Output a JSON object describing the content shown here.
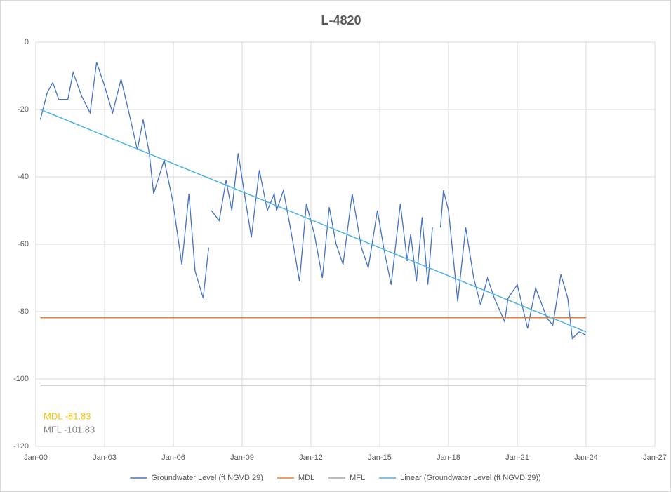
{
  "chart_data": {
    "type": "line",
    "title": "L-4820",
    "xlim": [
      2000,
      2027
    ],
    "xticks": [
      {
        "value": 2000,
        "label": "Jan-00"
      },
      {
        "value": 2003,
        "label": "Jan-03"
      },
      {
        "value": 2006,
        "label": "Jan-06"
      },
      {
        "value": 2009,
        "label": "Jan-09"
      },
      {
        "value": 2012,
        "label": "Jan-12"
      },
      {
        "value": 2015,
        "label": "Jan-15"
      },
      {
        "value": 2018,
        "label": "Jan-18"
      },
      {
        "value": 2021,
        "label": "Jan-21"
      },
      {
        "value": 2024,
        "label": "Jan-24"
      },
      {
        "value": 2027,
        "label": "Jan-27"
      }
    ],
    "ylim": [
      -120,
      0
    ],
    "yticks": [
      -120,
      -100,
      -80,
      -60,
      -40,
      -20,
      0
    ],
    "grid": true,
    "legend": "bottom",
    "series": [
      {
        "name": "Groundwater Level (ft NGVD 29)",
        "color": "#4472c4",
        "x": [
          2000.2,
          2000.5,
          2000.74,
          2001.0,
          2001.4,
          2001.63,
          2002.0,
          2002.37,
          2002.65,
          2003.0,
          2003.35,
          2003.72,
          2004.1,
          2004.43,
          2004.68,
          2004.95,
          2005.14,
          2005.6,
          2005.97,
          2006.37,
          2006.68,
          2006.95,
          2007.3,
          2007.54,
          2007.6,
          2007.66,
          2008.0,
          2008.3,
          2008.55,
          2008.83,
          2009.1,
          2009.4,
          2009.75,
          2010.1,
          2010.4,
          2010.5,
          2010.8,
          2011.1,
          2011.23,
          2011.5,
          2011.8,
          2012.15,
          2012.5,
          2012.8,
          2013.1,
          2013.4,
          2013.8,
          2014.2,
          2014.5,
          2014.9,
          2015.2,
          2015.5,
          2015.9,
          2016.2,
          2016.35,
          2016.6,
          2016.85,
          2017.1,
          2017.3,
          2017.5,
          2017.65,
          2017.78,
          2018.0,
          2018.4,
          2018.75,
          2019.1,
          2019.4,
          2019.7,
          2020.0,
          2020.45,
          2020.6,
          2021.0,
          2021.45,
          2021.8,
          2022.3,
          2022.55,
          2022.9,
          2023.2,
          2023.4,
          2023.7,
          2024.0
        ],
        "values": [
          -23,
          -15,
          -12,
          -17,
          -17,
          -9,
          -16,
          -21,
          -6,
          -13,
          -21,
          -11,
          -22,
          -32,
          -23,
          -33,
          -45,
          -35,
          -47,
          -66,
          -45,
          -68,
          -76,
          -61,
          null,
          -50,
          -53,
          -41,
          -50,
          -33,
          -45,
          -58,
          -38,
          -50,
          -45,
          -50,
          -44,
          -55,
          -60,
          -71,
          -48,
          -57,
          -70,
          -49,
          -60,
          -66,
          -45,
          -61,
          -67,
          -50,
          -62,
          -72,
          -48,
          -65,
          -57,
          -71,
          -52,
          -72,
          -55,
          null,
          -55,
          -44,
          -50,
          -77,
          -55,
          -70,
          -78,
          -70,
          -76,
          -83,
          -76,
          -72,
          -85,
          -73,
          -82,
          -84,
          -69,
          -76,
          -88,
          -86,
          -87
        ]
      },
      {
        "name": "MDL",
        "color": "#ed7d31",
        "x": [
          2000.2,
          2024.0
        ],
        "values": [
          -81.83,
          -81.83
        ]
      },
      {
        "name": "MFL",
        "color": "#a5a5a5",
        "x": [
          2000.2,
          2024.0
        ],
        "values": [
          -101.83,
          -101.83
        ]
      },
      {
        "name": "Linear (Groundwater Level (ft NGVD 29))",
        "color": "#4fb3e3",
        "x": [
          2000.2,
          2024.0
        ],
        "values": [
          -20,
          -86
        ]
      }
    ],
    "annotations": [
      {
        "text": "MDL -81.83",
        "color": "#ffc000"
      },
      {
        "text": "MFL -101.83",
        "color": "#7f7f7f"
      }
    ]
  }
}
